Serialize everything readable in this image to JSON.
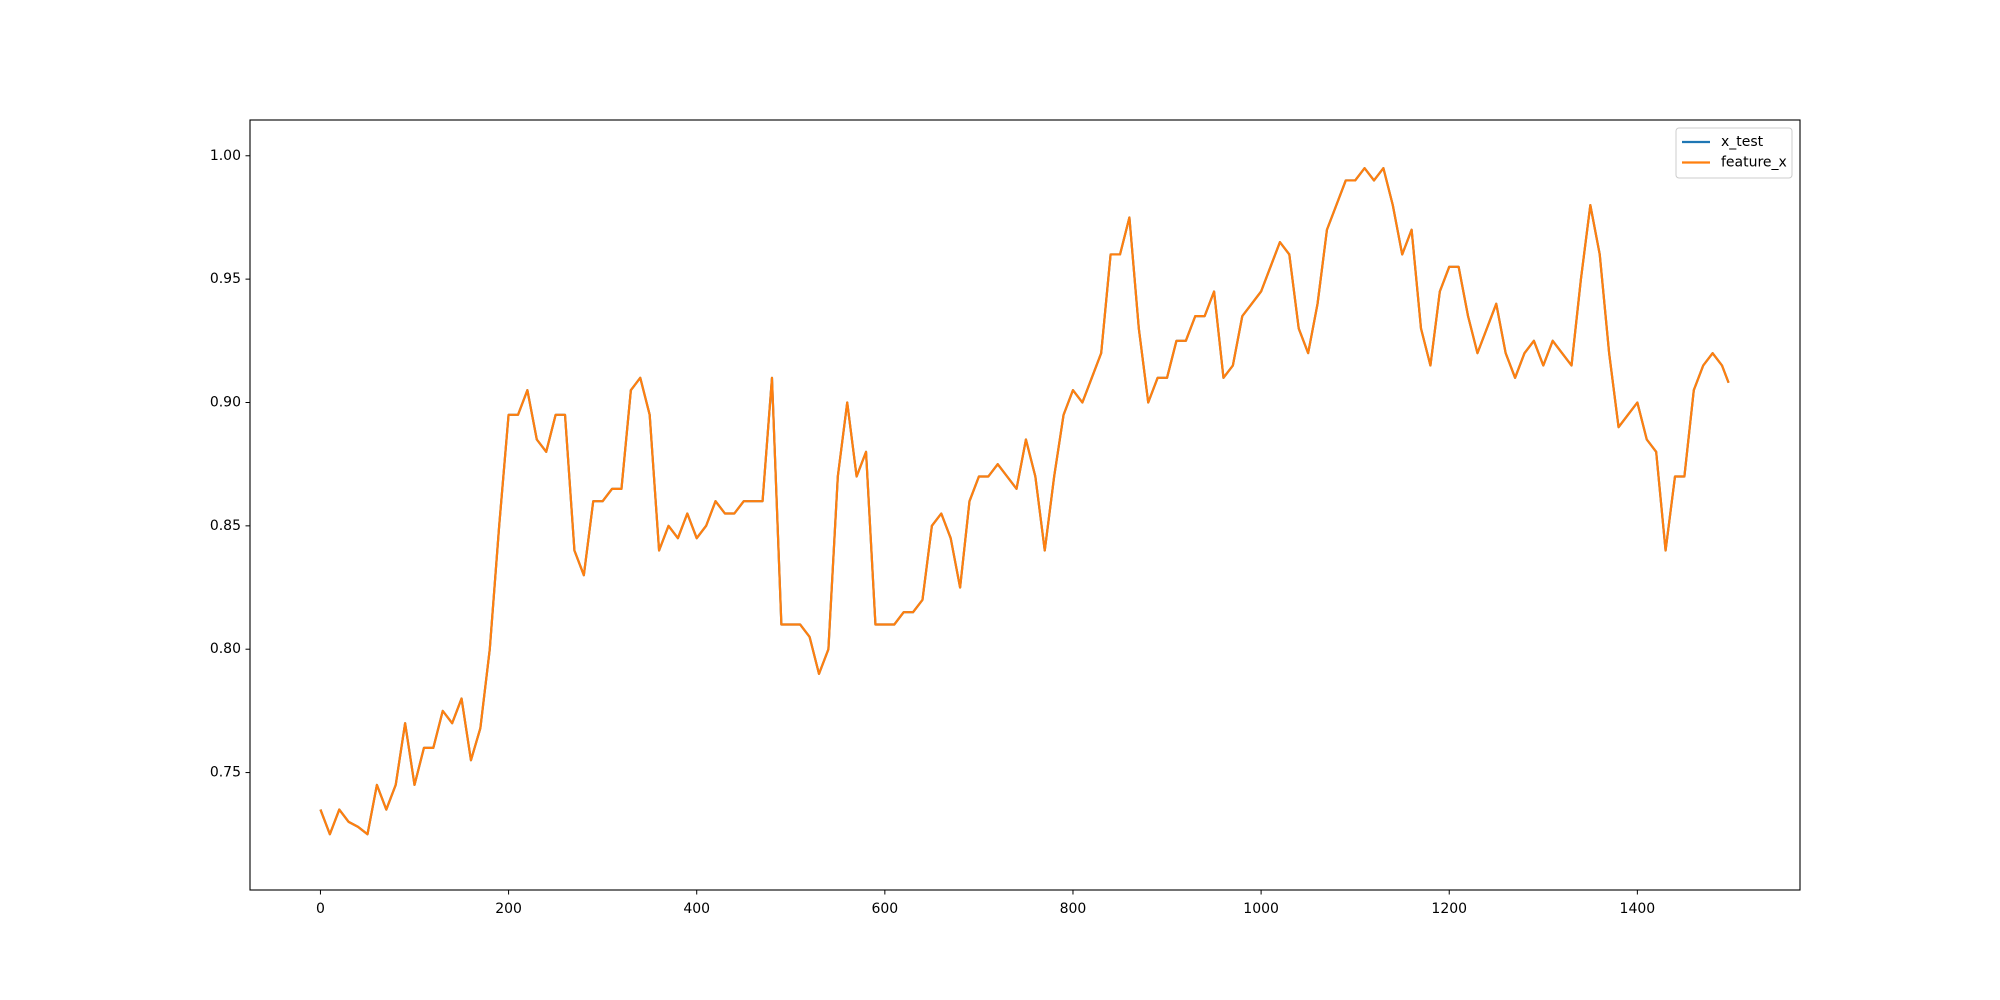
{
  "chart_data": {
    "type": "line",
    "x": [
      0,
      10,
      20,
      30,
      40,
      50,
      60,
      70,
      80,
      90,
      100,
      110,
      120,
      130,
      140,
      150,
      160,
      170,
      180,
      190,
      200,
      210,
      220,
      230,
      240,
      250,
      260,
      270,
      280,
      290,
      300,
      310,
      320,
      330,
      340,
      350,
      360,
      370,
      380,
      390,
      400,
      410,
      420,
      430,
      440,
      450,
      460,
      470,
      480,
      490,
      500,
      510,
      520,
      530,
      540,
      550,
      560,
      570,
      580,
      590,
      600,
      610,
      620,
      630,
      640,
      650,
      660,
      670,
      680,
      690,
      700,
      710,
      720,
      730,
      740,
      750,
      760,
      770,
      780,
      790,
      800,
      810,
      820,
      830,
      840,
      850,
      860,
      870,
      880,
      890,
      900,
      910,
      920,
      930,
      940,
      950,
      960,
      970,
      980,
      990,
      1000,
      1010,
      1020,
      1030,
      1040,
      1050,
      1060,
      1070,
      1080,
      1090,
      1100,
      1110,
      1120,
      1130,
      1140,
      1150,
      1160,
      1170,
      1180,
      1190,
      1200,
      1210,
      1220,
      1230,
      1240,
      1250,
      1260,
      1270,
      1280,
      1290,
      1300,
      1310,
      1320,
      1330,
      1340,
      1350,
      1360,
      1370,
      1380,
      1390,
      1400,
      1410,
      1420,
      1430,
      1440,
      1450,
      1460,
      1470,
      1480,
      1490,
      1497
    ],
    "series": [
      {
        "name": "x_test",
        "color": "#1f77b4",
        "values": [
          0.735,
          0.725,
          0.735,
          0.73,
          0.728,
          0.725,
          0.745,
          0.735,
          0.745,
          0.77,
          0.745,
          0.76,
          0.76,
          0.775,
          0.77,
          0.78,
          0.755,
          0.768,
          0.8,
          0.85,
          0.895,
          0.895,
          0.905,
          0.885,
          0.88,
          0.895,
          0.895,
          0.84,
          0.83,
          0.86,
          0.86,
          0.865,
          0.865,
          0.905,
          0.91,
          0.895,
          0.84,
          0.85,
          0.845,
          0.855,
          0.845,
          0.85,
          0.86,
          0.855,
          0.855,
          0.86,
          0.86,
          0.86,
          0.91,
          0.81,
          0.81,
          0.81,
          0.805,
          0.79,
          0.8,
          0.87,
          0.9,
          0.87,
          0.88,
          0.81,
          0.81,
          0.81,
          0.815,
          0.815,
          0.82,
          0.85,
          0.855,
          0.845,
          0.825,
          0.86,
          0.87,
          0.87,
          0.875,
          0.87,
          0.865,
          0.885,
          0.87,
          0.84,
          0.87,
          0.895,
          0.905,
          0.9,
          0.91,
          0.92,
          0.96,
          0.96,
          0.975,
          0.93,
          0.9,
          0.91,
          0.91,
          0.925,
          0.925,
          0.935,
          0.935,
          0.945,
          0.91,
          0.915,
          0.935,
          0.94,
          0.945,
          0.955,
          0.965,
          0.96,
          0.93,
          0.92,
          0.94,
          0.97,
          0.98,
          0.99,
          0.99,
          0.995,
          0.99,
          0.995,
          0.98,
          0.96,
          0.97,
          0.93,
          0.915,
          0.945,
          0.955,
          0.955,
          0.935,
          0.92,
          0.93,
          0.94,
          0.92,
          0.91,
          0.92,
          0.925,
          0.915,
          0.925,
          0.92,
          0.915,
          0.95,
          0.98,
          0.96,
          0.92,
          0.89,
          0.895,
          0.9,
          0.885,
          0.88,
          0.84,
          0.87,
          0.87,
          0.905,
          0.915,
          0.92,
          0.915,
          0.908
        ]
      },
      {
        "name": "feature_x",
        "color": "#ff7f0e",
        "values": [
          0.735,
          0.725,
          0.735,
          0.73,
          0.728,
          0.725,
          0.745,
          0.735,
          0.745,
          0.77,
          0.745,
          0.76,
          0.76,
          0.775,
          0.77,
          0.78,
          0.755,
          0.768,
          0.8,
          0.85,
          0.895,
          0.895,
          0.905,
          0.885,
          0.88,
          0.895,
          0.895,
          0.84,
          0.83,
          0.86,
          0.86,
          0.865,
          0.865,
          0.905,
          0.91,
          0.895,
          0.84,
          0.85,
          0.845,
          0.855,
          0.845,
          0.85,
          0.86,
          0.855,
          0.855,
          0.86,
          0.86,
          0.86,
          0.91,
          0.81,
          0.81,
          0.81,
          0.805,
          0.79,
          0.8,
          0.87,
          0.9,
          0.87,
          0.88,
          0.81,
          0.81,
          0.81,
          0.815,
          0.815,
          0.82,
          0.85,
          0.855,
          0.845,
          0.825,
          0.86,
          0.87,
          0.87,
          0.875,
          0.87,
          0.865,
          0.885,
          0.87,
          0.84,
          0.87,
          0.895,
          0.905,
          0.9,
          0.91,
          0.92,
          0.96,
          0.96,
          0.975,
          0.93,
          0.9,
          0.91,
          0.91,
          0.925,
          0.925,
          0.935,
          0.935,
          0.945,
          0.91,
          0.915,
          0.935,
          0.94,
          0.945,
          0.955,
          0.965,
          0.96,
          0.93,
          0.92,
          0.94,
          0.97,
          0.98,
          0.99,
          0.99,
          0.995,
          0.99,
          0.995,
          0.98,
          0.96,
          0.97,
          0.93,
          0.915,
          0.945,
          0.955,
          0.955,
          0.935,
          0.92,
          0.93,
          0.94,
          0.92,
          0.91,
          0.92,
          0.925,
          0.915,
          0.925,
          0.92,
          0.915,
          0.95,
          0.98,
          0.96,
          0.92,
          0.89,
          0.895,
          0.9,
          0.885,
          0.88,
          0.84,
          0.87,
          0.87,
          0.905,
          0.915,
          0.92,
          0.915,
          0.908
        ]
      }
    ],
    "xlim": [
      -74.9,
      1572.9
    ],
    "xticks": [
      0,
      200,
      400,
      600,
      800,
      1000,
      1200,
      1400
    ],
    "ylim": [
      0.7024,
      1.0145
    ],
    "yticks": [
      0.75,
      {
        "value": 0.8,
        "label": "0.80"
      },
      0.85,
      {
        "value": 0.9,
        "label": "0.90"
      },
      0.95,
      {
        "value": 1,
        "label": "1.00"
      }
    ],
    "legend": "upper right"
  }
}
